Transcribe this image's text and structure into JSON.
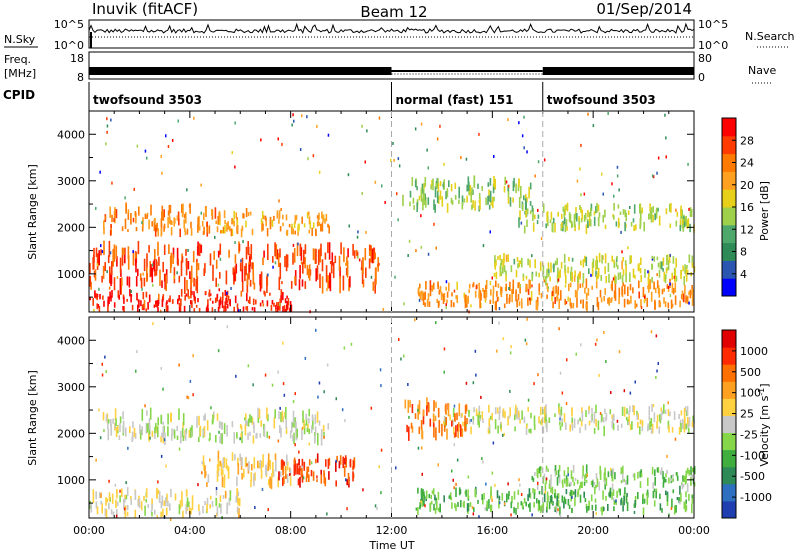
{
  "header": {
    "station": "Inuvik (fitACF)",
    "beam": "Beam 12",
    "date": "01/Sep/2014"
  },
  "nsky_panel": {
    "left_label": "N.Sky",
    "right_label": "N.Search",
    "ticks_left": [
      "10^5",
      "10^0"
    ],
    "ticks_right": [
      "10^5",
      "10^0"
    ]
  },
  "freq_panel": {
    "left_label_1": "Freq.",
    "left_label_2": "[MHz]",
    "right_label": "Nave",
    "ticks_left": [
      "18",
      "8"
    ],
    "ticks_right": [
      "80",
      "0"
    ]
  },
  "cpid": {
    "label": "CPID",
    "segments": [
      {
        "label": "twofsound 3503",
        "start_hour": 0,
        "end_hour": 12
      },
      {
        "label": "normal (fast) 151",
        "start_hour": 12,
        "end_hour": 18
      },
      {
        "label": "twofsound 3503",
        "start_hour": 18,
        "end_hour": 24
      }
    ]
  },
  "x_axis": {
    "label": "Time UT",
    "ticks": [
      "00:00",
      "04:00",
      "08:00",
      "12:00",
      "16:00",
      "20:00",
      "00:00"
    ]
  },
  "power_colorbar": {
    "label": "Power [dB]",
    "tick_labels": [
      "28",
      "24",
      "20",
      "16",
      "12",
      "8",
      "4"
    ],
    "colors": [
      "#0000ff",
      "#2a55b0",
      "#2e8b57",
      "#4ea86c",
      "#9fd04b",
      "#e6d019",
      "#ffa020",
      "#ff7a00",
      "#ff3b00",
      "#ff0000"
    ]
  },
  "velocity_colorbar": {
    "label": "Velocity [m s",
    "label_sup": "-1",
    "label_end": "]",
    "tick_labels": [
      "1000",
      "500",
      "100",
      "25",
      "-25",
      "-100",
      "-500",
      "-1000"
    ],
    "colors": [
      "#1f3fb0",
      "#2f6fc0",
      "#2e8b57",
      "#3fae3f",
      "#86d649",
      "#c8c8c8",
      "#ffd040",
      "#ffa020",
      "#ff7000",
      "#ff2a00",
      "#e00000"
    ]
  },
  "chart_data": [
    {
      "type": "heatmap",
      "title": "Beam 12",
      "xlabel": "Time UT",
      "ylabel": "Slant Range [km]",
      "xlim": [
        0,
        24
      ],
      "ylim": [
        180,
        4500
      ],
      "x_ticks": [
        "00:00",
        "04:00",
        "08:00",
        "12:00",
        "16:00",
        "20:00",
        "00:00"
      ],
      "y_ticks": [
        1000,
        2000,
        3000,
        4000
      ],
      "colorbar_label": "Power [dB]",
      "colorbar_ticks": [
        28,
        24,
        20,
        16,
        12,
        8,
        4
      ],
      "value_range": [
        0,
        30
      ],
      "scatter_bands": [
        {
          "t_start": 0.5,
          "t_end": 5.0,
          "r_center": 2150,
          "r_width": 280,
          "value": 22
        },
        {
          "t_start": 5.0,
          "t_end": 9.5,
          "r_center": 2100,
          "r_width": 220,
          "value": 20
        },
        {
          "t_start": 0.0,
          "t_end": 11.5,
          "r_center": 1150,
          "r_width": 420,
          "value": 25
        },
        {
          "t_start": 0.0,
          "t_end": 8.0,
          "r_center": 400,
          "r_width": 200,
          "value": 27
        },
        {
          "t_start": 12.3,
          "t_end": 17.5,
          "r_center": 2700,
          "r_width": 300,
          "value": 13
        },
        {
          "t_start": 13.0,
          "t_end": 24.0,
          "r_center": 550,
          "r_width": 250,
          "value": 21
        },
        {
          "t_start": 16.0,
          "t_end": 24.0,
          "r_center": 1100,
          "r_width": 250,
          "value": 15
        },
        {
          "t_start": 17.0,
          "t_end": 24.0,
          "r_center": 2200,
          "r_width": 250,
          "value": 14
        }
      ]
    },
    {
      "type": "heatmap",
      "title": "",
      "xlabel": "Time UT",
      "ylabel": "Slant Range [km]",
      "xlim": [
        0,
        24
      ],
      "ylim": [
        180,
        4500
      ],
      "x_ticks": [
        "00:00",
        "04:00",
        "08:00",
        "12:00",
        "16:00",
        "20:00",
        "00:00"
      ],
      "y_ticks": [
        1000,
        2000,
        3000,
        4000
      ],
      "colorbar_label": "Velocity [m s-1]",
      "colorbar_ticks": [
        1000,
        500,
        100,
        25,
        -25,
        -100,
        -500,
        -1000
      ],
      "value_range": [
        -1000,
        1000
      ],
      "scatter_bands": [
        {
          "t_start": 0.5,
          "t_end": 9.5,
          "r_center": 2150,
          "r_width": 300,
          "value": 0
        },
        {
          "t_start": 4.5,
          "t_end": 8.0,
          "r_center": 1200,
          "r_width": 320,
          "value": 150
        },
        {
          "t_start": 7.5,
          "t_end": 10.5,
          "r_center": 1200,
          "r_width": 280,
          "value": 700
        },
        {
          "t_start": 0.0,
          "t_end": 6.0,
          "r_center": 500,
          "r_width": 250,
          "value": 60
        },
        {
          "t_start": 13.0,
          "t_end": 24.0,
          "r_center": 550,
          "r_width": 230,
          "value": -300
        },
        {
          "t_start": 17.5,
          "t_end": 24.0,
          "r_center": 1050,
          "r_width": 220,
          "value": -200
        },
        {
          "t_start": 14.0,
          "t_end": 24.0,
          "r_center": 2300,
          "r_width": 250,
          "value": 0
        },
        {
          "t_start": 12.3,
          "t_end": 15.0,
          "r_center": 2300,
          "r_width": 350,
          "value": 500
        }
      ]
    }
  ]
}
